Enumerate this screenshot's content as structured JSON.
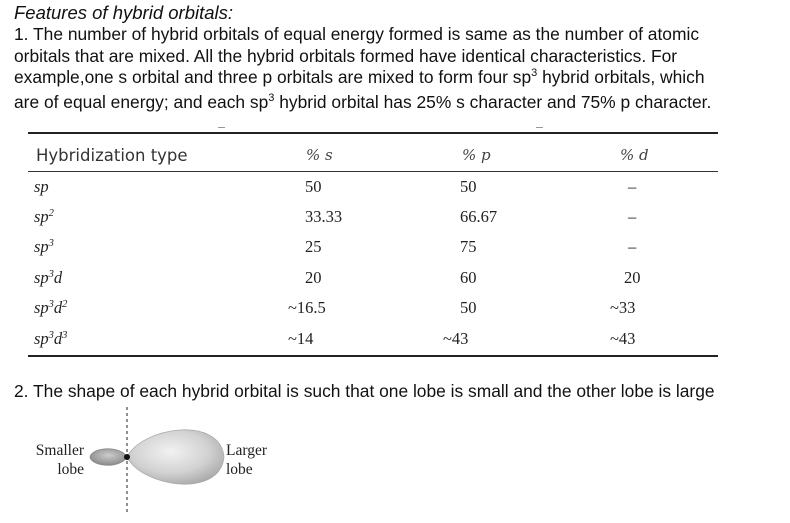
{
  "heading": "Features of hybrid orbitals:",
  "point1": {
    "line1": "1. The number of hybrid orbitals of equal energy formed is same as the number of atomic",
    "line2": "orbitals that are mixed. All the hybrid orbitals formed have identical characteristics. For",
    "line3_a": "example,one s orbital and three p orbitals are mixed to form four sp",
    "line3_sup": "3",
    "line3_b": " hybrid orbitals, which",
    "line4_a": "are of equal energy; and each sp",
    "line4_sup": "3",
    "line4_b": " hybrid orbital has 25% s character and 75% p character."
  },
  "table": {
    "headers": {
      "type": "Hybridization type",
      "s": "% s",
      "p": "% p",
      "d": "% d"
    },
    "rows": [
      {
        "type_base": "sp",
        "type_sup1": "",
        "type_mid": "",
        "type_sup2": "",
        "s": "50",
        "p": "50",
        "d": "–"
      },
      {
        "type_base": "sp",
        "type_sup1": "2",
        "type_mid": "",
        "type_sup2": "",
        "s": "33.33",
        "p": "66.67",
        "d": "–"
      },
      {
        "type_base": "sp",
        "type_sup1": "3",
        "type_mid": "",
        "type_sup2": "",
        "s": "25",
        "p": "75",
        "d": "–"
      },
      {
        "type_base": "sp",
        "type_sup1": "3",
        "type_mid": "d",
        "type_sup2": "",
        "s": "20",
        "p": "60",
        "d": "20"
      },
      {
        "type_base": "sp",
        "type_sup1": "3",
        "type_mid": "d",
        "type_sup2": "2",
        "s": "~16.5",
        "p": "50",
        "d": "~33"
      },
      {
        "type_base": "sp",
        "type_sup1": "3",
        "type_mid": "d",
        "type_sup2": "3",
        "s": "~14",
        "p": "~43",
        "d": "~43"
      }
    ]
  },
  "point2": "2. The shape of each hybrid orbital is such that one lobe is small and the other lobe is large",
  "diagram": {
    "smaller_label_1": "Smaller",
    "smaller_label_2": "lobe",
    "larger_label_1": "Larger",
    "larger_label_2": "lobe"
  }
}
